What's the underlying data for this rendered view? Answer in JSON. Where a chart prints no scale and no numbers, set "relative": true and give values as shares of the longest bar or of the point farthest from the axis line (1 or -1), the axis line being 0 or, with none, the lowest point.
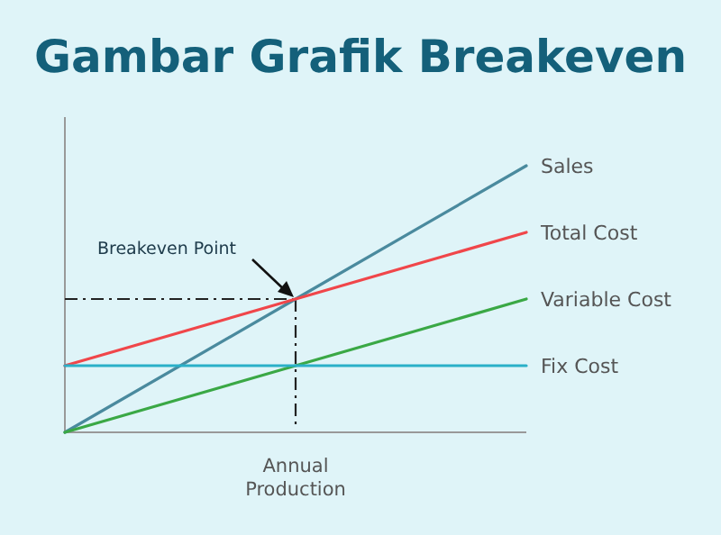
{
  "chart_data": {
    "type": "line",
    "title": "Gambar Grafik Breakeven",
    "xlabel": "Annual Production",
    "relative": true,
    "categories": [
      null,
      null,
      null
    ],
    "series": [
      {
        "name": "Sales",
        "color": "#4a8a9e",
        "values": [
          0,
          0.5,
          1
        ]
      },
      {
        "name": "Total Cost",
        "color": "#f0464a",
        "values": [
          0.25,
          0.5,
          0.75
        ]
      },
      {
        "name": "Variable Cost",
        "color": "#3aa845",
        "values": [
          0,
          0.25,
          0.5
        ]
      },
      {
        "name": "Fix Cost",
        "color": "#2ab0c8",
        "values": [
          0.25,
          0.25,
          0.25
        ]
      }
    ],
    "annotations": [
      "Breakeven Point"
    ],
    "legend": false,
    "grid": false,
    "marker": "none",
    "line_style": "solid"
  }
}
